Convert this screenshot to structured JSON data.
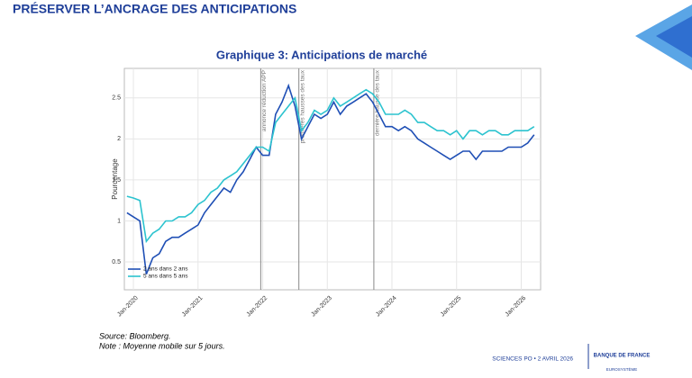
{
  "page_title": "PRÉSERVER L’ANCRAGE DES ANTICIPATIONS",
  "source": "Source: Bloomberg.",
  "note": "Note : Moyenne mobile sur 5 jours.",
  "footer": "SCIENCES PO • 2 AVRIL 2026",
  "logo": {
    "name": "BANQUE DE FRANCE",
    "sub": "EUROSYSTÈME"
  },
  "chart_data": {
    "type": "line",
    "title": "Graphique 3:  Anticipations de marché",
    "ylabel": "Pourcentage",
    "xlim": [
      2019.86,
      2026.3
    ],
    "ylim": [
      0.16,
      2.86
    ],
    "yticks": [
      0.5,
      1,
      1.5,
      2,
      2.5
    ],
    "xticks": [
      {
        "value": 2020,
        "label": "Jan-2020"
      },
      {
        "value": 2021,
        "label": "Jan-2021"
      },
      {
        "value": 2022,
        "label": "Jan-2022"
      },
      {
        "value": 2023,
        "label": "Jan-2023"
      },
      {
        "value": 2024,
        "label": "Jan-2024"
      },
      {
        "value": 2025,
        "label": "Jan-2025"
      },
      {
        "value": 2026,
        "label": "Jan-2026"
      }
    ],
    "grid": true,
    "legend": "lower left",
    "annotations": [
      {
        "x": 2021.97,
        "label": "annonce réduction APP"
      },
      {
        "x": 2022.56,
        "label": "premières hausses des taux"
      },
      {
        "x": 2023.72,
        "label": "dernière hausse des taux"
      }
    ],
    "x": [
      2019.9,
      2020.0,
      2020.1,
      2020.2,
      2020.3,
      2020.4,
      2020.5,
      2020.6,
      2020.7,
      2020.8,
      2020.9,
      2021.0,
      2021.1,
      2021.2,
      2021.3,
      2021.4,
      2021.5,
      2021.6,
      2021.7,
      2021.8,
      2021.9,
      2022.0,
      2022.1,
      2022.2,
      2022.3,
      2022.4,
      2022.5,
      2022.6,
      2022.7,
      2022.8,
      2022.9,
      2023.0,
      2023.1,
      2023.2,
      2023.3,
      2023.4,
      2023.5,
      2023.6,
      2023.7,
      2023.8,
      2023.9,
      2024.0,
      2024.1,
      2024.2,
      2024.3,
      2024.4,
      2024.5,
      2024.6,
      2024.7,
      2024.8,
      2024.9,
      2025.0,
      2025.1,
      2025.2,
      2025.3,
      2025.4,
      2025.5,
      2025.6,
      2025.7,
      2025.8,
      2025.9,
      2026.0,
      2026.1,
      2026.2
    ],
    "series": [
      {
        "name": "2 ans dans 2 ans",
        "color": "#1f4fb5",
        "values": [
          1.1,
          1.05,
          1.0,
          0.35,
          0.55,
          0.6,
          0.75,
          0.8,
          0.8,
          0.85,
          0.9,
          0.95,
          1.1,
          1.2,
          1.3,
          1.4,
          1.35,
          1.5,
          1.6,
          1.75,
          1.9,
          1.8,
          1.8,
          2.3,
          2.45,
          2.65,
          2.4,
          2.0,
          2.15,
          2.3,
          2.25,
          2.3,
          2.45,
          2.3,
          2.4,
          2.45,
          2.5,
          2.55,
          2.45,
          2.3,
          2.15,
          2.15,
          2.1,
          2.15,
          2.1,
          2.0,
          1.95,
          1.9,
          1.85,
          1.8,
          1.75,
          1.8,
          1.85,
          1.85,
          1.75,
          1.85,
          1.85,
          1.85,
          1.85,
          1.9,
          1.9,
          1.9,
          1.95,
          2.05
        ]
      },
      {
        "name": "5 ans dans 5 ans",
        "color": "#2cc3cf",
        "values": [
          1.3,
          1.28,
          1.25,
          0.75,
          0.85,
          0.9,
          1.0,
          1.0,
          1.05,
          1.05,
          1.1,
          1.2,
          1.25,
          1.35,
          1.4,
          1.5,
          1.55,
          1.6,
          1.7,
          1.8,
          1.9,
          1.9,
          1.85,
          2.2,
          2.3,
          2.4,
          2.5,
          2.1,
          2.2,
          2.35,
          2.3,
          2.35,
          2.5,
          2.4,
          2.45,
          2.5,
          2.55,
          2.6,
          2.55,
          2.45,
          2.3,
          2.3,
          2.3,
          2.35,
          2.3,
          2.2,
          2.2,
          2.15,
          2.1,
          2.1,
          2.05,
          2.1,
          2.0,
          2.1,
          2.1,
          2.05,
          2.1,
          2.1,
          2.05,
          2.05,
          2.1,
          2.1,
          2.1,
          2.15
        ]
      }
    ]
  }
}
